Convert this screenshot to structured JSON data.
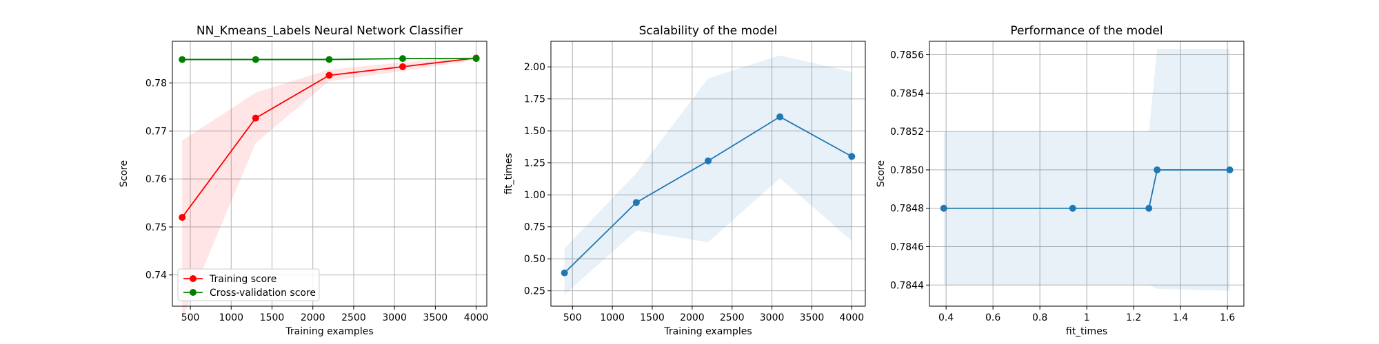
{
  "chart_data": [
    {
      "type": "line",
      "title": "NN_Kmeans_Labels Neural Network Classifier",
      "xlabel": "Training examples",
      "ylabel": "Score",
      "xlim": [
        280,
        4130
      ],
      "ylim": [
        0.7335,
        0.7887
      ],
      "xticks": [
        500,
        1000,
        1500,
        2000,
        2500,
        3000,
        3500,
        4000
      ],
      "yticks": [
        0.74,
        0.75,
        0.76,
        0.77,
        0.78
      ],
      "grid": true,
      "legend": "lower-left",
      "series": [
        {
          "name": "Training score",
          "color": "#ff0000",
          "x": [
            400,
            1300,
            2200,
            3100,
            4000
          ],
          "values": [
            0.752,
            0.7727,
            0.7816,
            0.7834,
            0.7852
          ],
          "band_upper": [
            0.768,
            0.778,
            0.7828,
            0.7843,
            0.7856
          ],
          "band_lower": [
            0.731,
            0.7675,
            0.7804,
            0.7825,
            0.7848
          ]
        },
        {
          "name": "Cross-validation score",
          "color": "#008000",
          "x": [
            400,
            1300,
            2200,
            3100,
            4000
          ],
          "values": [
            0.7849,
            0.7849,
            0.7849,
            0.7851,
            0.7851
          ],
          "band_upper": [
            0.7852,
            0.7852,
            0.7852,
            0.78525,
            0.78525
          ],
          "band_lower": [
            0.7846,
            0.7846,
            0.7846,
            0.7849,
            0.7849
          ]
        }
      ]
    },
    {
      "type": "line",
      "title": "Scalability of the model",
      "xlabel": "Training examples",
      "ylabel": "fit_times",
      "xlim": [
        230,
        4170
      ],
      "ylim": [
        0.13,
        2.2
      ],
      "xticks": [
        500,
        1000,
        1500,
        2000,
        2500,
        3000,
        3500,
        4000
      ],
      "yticks": [
        0.25,
        0.5,
        0.75,
        1.0,
        1.25,
        1.5,
        1.75,
        2.0
      ],
      "ytick_labels": [
        "0.25",
        "0.50",
        "0.75",
        "1.00",
        "1.25",
        "1.50",
        "1.75",
        "2.00"
      ],
      "grid": true,
      "series": [
        {
          "color": "#1f77b4",
          "x": [
            400,
            1300,
            2200,
            3100,
            4000
          ],
          "values": [
            0.39,
            0.94,
            1.265,
            1.61,
            1.3
          ],
          "band_upper": [
            0.58,
            1.17,
            1.91,
            2.09,
            1.96
          ],
          "band_lower": [
            0.22,
            0.72,
            0.63,
            1.13,
            0.64
          ]
        }
      ]
    },
    {
      "type": "line",
      "title": "Performance of the model",
      "xlabel": "fit_times",
      "ylabel": "Score",
      "xlim": [
        0.329,
        1.67
      ],
      "ylim": [
        0.78429,
        0.78567
      ],
      "xticks": [
        0.4,
        0.6,
        0.8,
        1.0,
        1.2,
        1.4,
        1.6
      ],
      "yticks": [
        0.7844,
        0.7846,
        0.7848,
        0.785,
        0.7852,
        0.7854,
        0.7856
      ],
      "ytick_labels": [
        "0.7844",
        "0.7846",
        "0.7848",
        "0.7850",
        "0.7852",
        "0.7854",
        "0.7856"
      ],
      "grid": true,
      "series": [
        {
          "color": "#1f77b4",
          "x": [
            0.39,
            0.94,
            1.265,
            1.3,
            1.61
          ],
          "values": [
            0.7848,
            0.7848,
            0.7848,
            0.785,
            0.785
          ],
          "band_upper": [
            0.7852,
            0.7852,
            0.7852,
            0.78563,
            0.78563
          ],
          "band_lower": [
            0.7844,
            0.7844,
            0.7844,
            0.78438,
            0.78437
          ]
        }
      ]
    }
  ]
}
